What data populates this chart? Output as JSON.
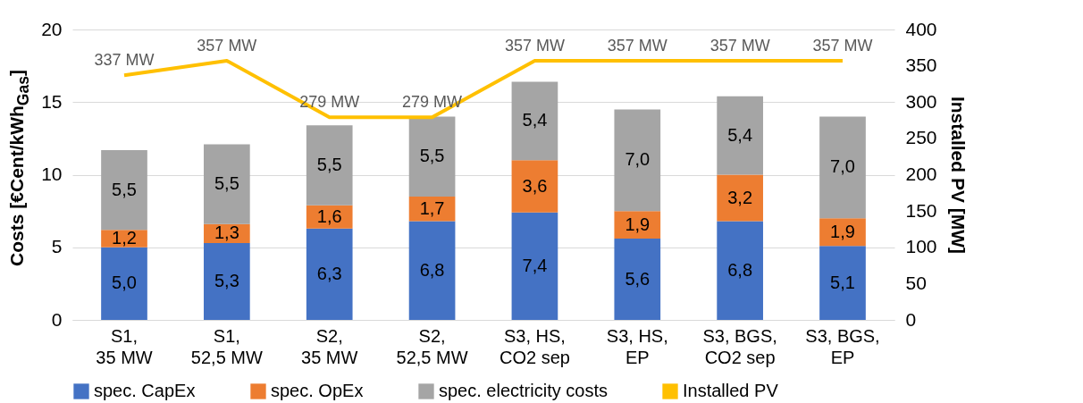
{
  "chart_data": {
    "type": "bar",
    "stacked": true,
    "categories": [
      "S1,\n35 MW",
      "S1,\n52,5 MW",
      "S2,\n35 MW",
      "S2,\n52,5 MW",
      "S3, HS,\nCO2 sep",
      "S3, HS,\nEP",
      "S3, BGS,\nCO2 sep",
      "S3, BGS,\nEP"
    ],
    "ylabel": "Costs [€Cent/kWh$_{Gas}$]",
    "y2label": "Installed PV [MW]",
    "ylim": [
      0,
      20
    ],
    "yticks": [
      0,
      5,
      10,
      15,
      20
    ],
    "y2lim": [
      0,
      400
    ],
    "y2ticks": [
      0,
      50,
      100,
      150,
      200,
      250,
      300,
      350,
      400
    ],
    "grid": "y",
    "legend": "bottom",
    "series": [
      {
        "name": "spec. CapEx",
        "color": "#4472c4",
        "values": [
          5.0,
          5.3,
          6.3,
          6.8,
          7.4,
          5.6,
          6.8,
          5.1
        ],
        "value_labels": [
          "5,0",
          "5,3",
          "6,3",
          "6,8",
          "7,4",
          "5,6",
          "6,8",
          "5,1"
        ]
      },
      {
        "name": "spec. OpEx",
        "color": "#ed7d31",
        "values": [
          1.2,
          1.3,
          1.6,
          1.7,
          3.6,
          1.9,
          3.2,
          1.9
        ],
        "value_labels": [
          "1,2",
          "1,3",
          "1,6",
          "1,7",
          "3,6",
          "1,9",
          "3,2",
          "1,9"
        ]
      },
      {
        "name": "spec. electricity costs",
        "color": "#a5a5a5",
        "values": [
          5.5,
          5.5,
          5.5,
          5.5,
          5.4,
          7.0,
          5.4,
          7.0
        ],
        "value_labels": [
          "5,5",
          "5,5",
          "5,5",
          "5,5",
          "5,4",
          "7,0",
          "5,4",
          "7,0"
        ]
      },
      {
        "name": "Installed PV",
        "type": "line",
        "axis": "y2",
        "color": "#ffc000",
        "values": [
          337,
          357,
          279,
          279,
          357,
          357,
          357,
          357
        ],
        "value_labels": [
          "337 MW",
          "357 MW",
          "279 MW",
          "279 MW",
          "357 MW",
          "357 MW",
          "357 MW",
          "357 MW"
        ]
      }
    ]
  }
}
